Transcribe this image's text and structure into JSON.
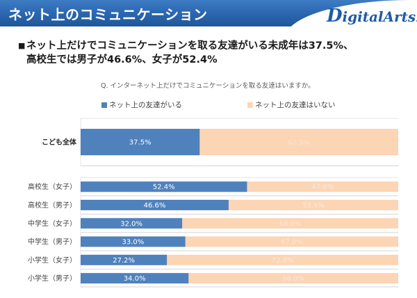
{
  "header": {
    "title": "ネット上のコミュニケーション",
    "logo": {
      "initial": "D",
      "rest": "igitalArts",
      "mark": "."
    }
  },
  "headline": {
    "bullet": "■",
    "line1": "ネット上だけでコミュニケーションを取る友達がいる未成年は37.5%、",
    "line2": "高校生では男子が46.6%、女子が52.4%"
  },
  "question": "Q. インターネット上だけでコミュニケーションを取る友達はいますか。",
  "colors": {
    "has_friends": "#4f81bd",
    "no_friends": "#fcd5b5",
    "header_blue": "#2a65ae",
    "logo_blue": "#1e5aa7"
  },
  "chart_data": {
    "type": "bar",
    "orientation": "horizontal",
    "stacked": "percent",
    "title": "Q. インターネット上だけでコミュニケーションを取る友達はいますか。",
    "xlim": [
      0,
      100
    ],
    "legend": {
      "placement": "top",
      "entries": [
        "ネット上の友達がいる",
        "ネット上の友達はいない"
      ]
    },
    "series": [
      {
        "name": "ネット上の友達がいる",
        "color": "#4f81bd"
      },
      {
        "name": "ネット上の友達はいない",
        "color": "#fcd5b5"
      }
    ],
    "groups": [
      {
        "name": "overall",
        "categories": [
          "こども全体"
        ],
        "values": [
          [
            37.5,
            62.5
          ]
        ],
        "labels": [
          [
            "37.5%",
            "62.5%"
          ]
        ]
      },
      {
        "name": "by-segment",
        "categories": [
          "高校生（女子）",
          "高校生（男子）",
          "中学生（女子）",
          "中学生（男子）",
          "小学生（女子）",
          "小学生（男子）"
        ],
        "values": [
          [
            52.4,
            47.6
          ],
          [
            46.6,
            53.4
          ],
          [
            32.0,
            68.0
          ],
          [
            33.0,
            67.0
          ],
          [
            27.2,
            72.8
          ],
          [
            34.0,
            66.0
          ]
        ],
        "labels": [
          [
            "52.4%",
            "47.6%"
          ],
          [
            "46.6%",
            "53.4%"
          ],
          [
            "32.0%",
            "68.0%"
          ],
          [
            "33.0%",
            "67.0%"
          ],
          [
            "27.2%",
            "72.8%"
          ],
          [
            "34.0%",
            "66.0%"
          ]
        ]
      }
    ]
  }
}
